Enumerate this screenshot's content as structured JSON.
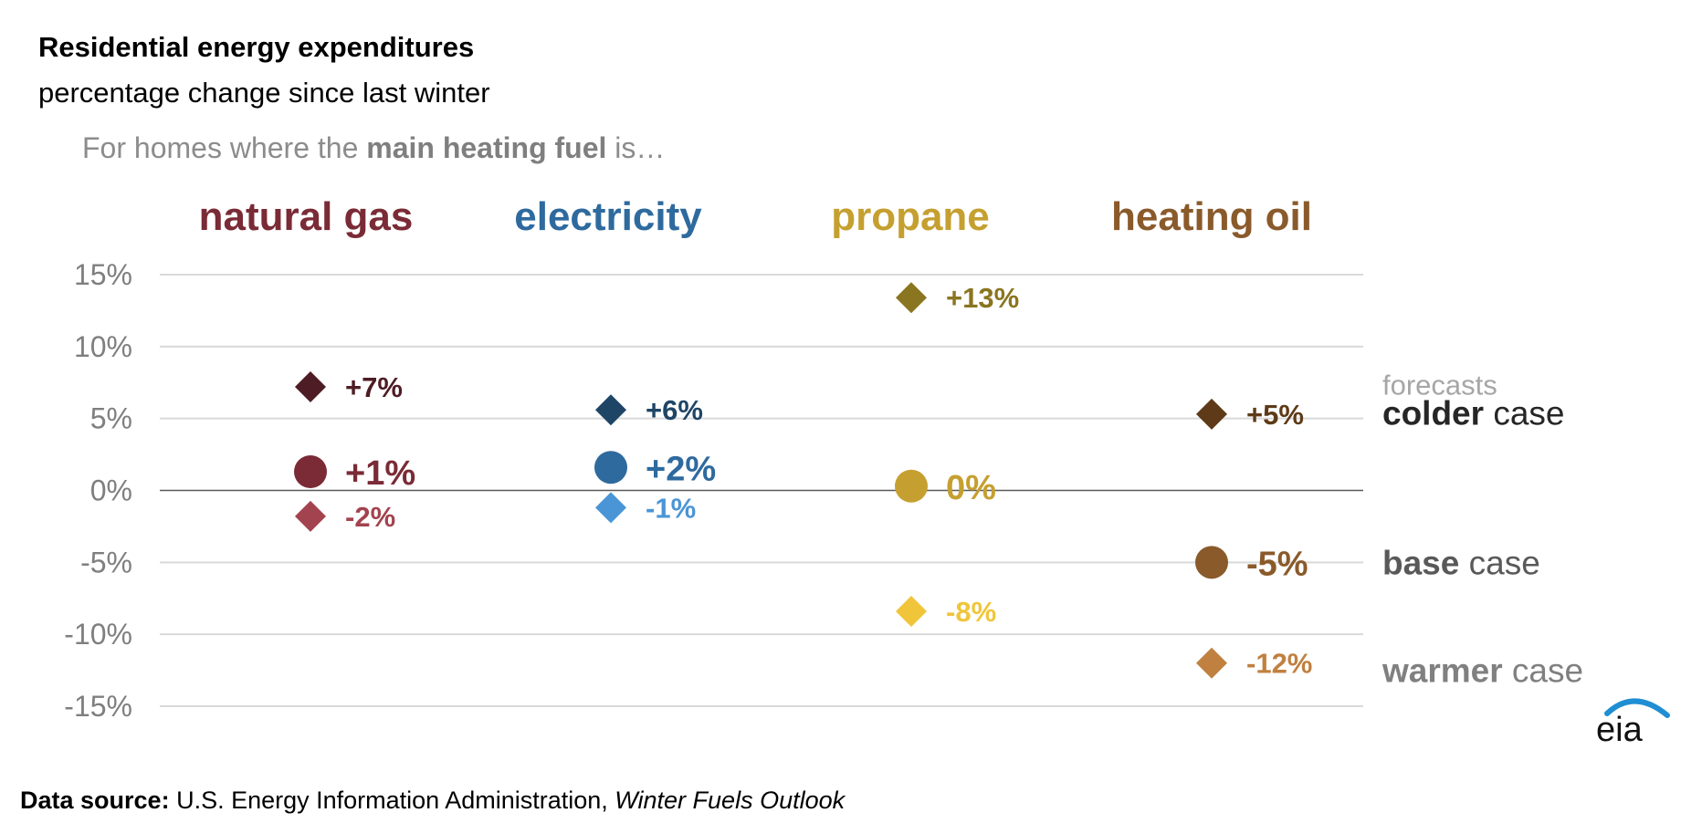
{
  "title": "Residential energy expenditures",
  "subtitle": "percentage change since last winter",
  "intro": {
    "prefix": "For homes where the ",
    "bold": "main heating fuel",
    "suffix": " is…"
  },
  "source": {
    "label": "Data source:",
    "text": " U.S. Energy Information Administration, ",
    "italic": "Winter Fuels Outlook"
  },
  "logo_text": "eia",
  "legend": {
    "header": "forecasts",
    "items": [
      {
        "bold": "colder",
        "rest": " case",
        "color": "#262626",
        "value_ref": 5.4
      },
      {
        "bold": "base",
        "rest": " case",
        "color": "#595959",
        "value_ref": -5
      },
      {
        "bold": "warmer",
        "rest": " case",
        "color": "#808080",
        "value_ref": -12.5
      }
    ]
  },
  "chart_data": {
    "type": "scatter",
    "ylim": [
      -15,
      15
    ],
    "yticks": [
      15,
      10,
      5,
      0,
      -5,
      -10,
      -15
    ],
    "ytick_labels": [
      "15%",
      "10%",
      "5%",
      "0%",
      "-5%",
      "-10%",
      "-15%"
    ],
    "categories": [
      "natural gas",
      "electricity",
      "propane",
      "heating oil"
    ],
    "category_colors": [
      "#7a2b36",
      "#2e6a9e",
      "#c5a030",
      "#8a5a2b"
    ],
    "series": [
      {
        "name": "colder case",
        "marker": "diamond",
        "values": [
          7.2,
          5.6,
          13.4,
          5.3
        ],
        "labels": [
          "+7%",
          "+6%",
          "+13%",
          "+5%"
        ],
        "colors": [
          "#4e1c24",
          "#1f4566",
          "#8a7520",
          "#5e3a18"
        ]
      },
      {
        "name": "base case",
        "marker": "circle",
        "values": [
          1.3,
          1.6,
          0.3,
          -5.0
        ],
        "labels": [
          "+1%",
          "+2%",
          "0%",
          "-5%"
        ],
        "colors": [
          "#7a2b36",
          "#2e6a9e",
          "#c5a030",
          "#8a5a2b"
        ]
      },
      {
        "name": "warmer case",
        "marker": "diamond",
        "values": [
          -1.8,
          -1.2,
          -8.4,
          -12.0
        ],
        "labels": [
          "-2%",
          "-1%",
          "-8%",
          "-12%"
        ],
        "colors": [
          "#a3434f",
          "#4a95d6",
          "#f0c53a",
          "#c0803f"
        ]
      }
    ]
  }
}
